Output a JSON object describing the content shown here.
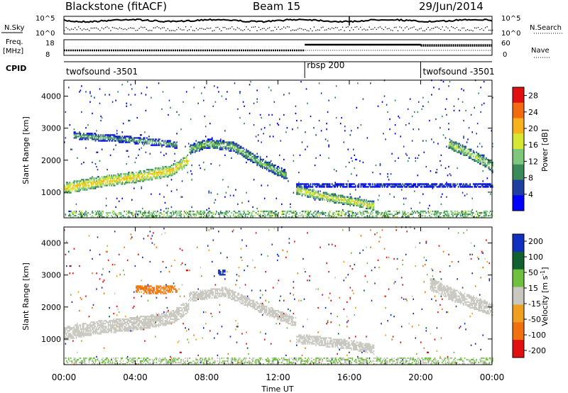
{
  "header": {
    "title": "Blackstone (fitACF)",
    "beam": "Beam 15",
    "date": "29/Jun/2014"
  },
  "summary_panels": {
    "nsky_label": "N.Sky",
    "nsearch_label": "N.Search",
    "nsky_ticks": [
      "10^5",
      "10^0"
    ],
    "freq_label_line1": "Freq.",
    "freq_label_line2": "[MHz]",
    "freq_ticks": [
      "18",
      "8"
    ],
    "nave_label": "Nave",
    "nave_ticks": [
      "60",
      "0"
    ],
    "cpid_label": "CPID"
  },
  "cpid_segments": [
    {
      "label": "twofsound -3501",
      "start_hour": 0,
      "end_hour": 13.5
    },
    {
      "label": "rbsp 200",
      "start_hour": 13.5,
      "end_hour": 20
    },
    {
      "label": "twofsound -3501",
      "start_hour": 20,
      "end_hour": 24
    }
  ],
  "x_axis": {
    "label": "Time UT",
    "ticks": [
      "00:00",
      "04:00",
      "08:00",
      "12:00",
      "16:00",
      "20:00",
      "00:00"
    ],
    "range_hours": [
      0,
      24
    ]
  },
  "chart_data": [
    {
      "type": "heatmap",
      "name": "power",
      "ylabel": "Slant Range [km]",
      "y_ticks": [
        1000,
        2000,
        3000,
        4000
      ],
      "ylim": [
        200,
        4500
      ],
      "x_unit": "hour UT",
      "colorbar": {
        "label": "Power [dB]",
        "ticks": [
          4,
          8,
          12,
          16,
          20,
          24,
          28
        ],
        "range": [
          0,
          30
        ],
        "colors": [
          "#0000ff",
          "#1f3f9f",
          "#3a8a5a",
          "#7ec87e",
          "#d7e832",
          "#f7b31e",
          "#f36a10",
          "#e01010"
        ]
      },
      "echo_bands": [
        {
          "x": [
            0,
            2,
            4,
            6,
            7
          ],
          "y": [
            1100,
            1300,
            1450,
            1650,
            2000
          ],
          "width_km": 350,
          "level_db": 20
        },
        {
          "x": [
            7,
            8,
            9.5,
            11,
            12.5
          ],
          "y": [
            2300,
            2500,
            2400,
            1900,
            1500
          ],
          "width_km": 300,
          "level_db": 14
        },
        {
          "x": [
            0.5,
            3,
            5,
            6.3
          ],
          "y": [
            2750,
            2650,
            2550,
            2450
          ],
          "width_km": 220,
          "level_db": 12
        },
        {
          "x": [
            13,
            14.5,
            16,
            17.4
          ],
          "y": [
            1050,
            850,
            700,
            550
          ],
          "width_km": 280,
          "level_db": 18
        },
        {
          "x": [
            13,
            16,
            20,
            24
          ],
          "y": [
            1200,
            1200,
            1200,
            1200
          ],
          "width_km": 120,
          "level_db": 8
        },
        {
          "x": [
            21.5,
            22.5,
            23.5,
            24
          ],
          "y": [
            2500,
            2250,
            1950,
            1750
          ],
          "width_km": 320,
          "level_db": 16
        }
      ]
    },
    {
      "type": "heatmap",
      "name": "velocity",
      "ylabel": "Slant Range [km]",
      "y_ticks": [
        1000,
        2000,
        3000,
        4000
      ],
      "ylim": [
        200,
        4500
      ],
      "x_unit": "hour UT",
      "colorbar": {
        "label": "Velocity [m s^-1]",
        "ticks": [
          200,
          100,
          50,
          15,
          -15,
          -50,
          -100,
          -200
        ],
        "colors": [
          "#1030c0",
          "#106030",
          "#70c040",
          "#c8c8c0",
          "#f0a020",
          "#f07010",
          "#e01010"
        ]
      },
      "echo_bands": [
        {
          "x": [
            0,
            2,
            4,
            6,
            7
          ],
          "y": [
            1150,
            1350,
            1450,
            1650,
            2000
          ],
          "width_km": 420,
          "velocity": 0
        },
        {
          "x": [
            7,
            9,
            11,
            13
          ],
          "y": [
            2300,
            2450,
            1950,
            1500
          ],
          "width_km": 300,
          "velocity": 0
        },
        {
          "x": [
            4,
            5,
            6.3
          ],
          "y": [
            2550,
            2500,
            2550
          ],
          "width_km": 250,
          "velocity": -60
        },
        {
          "x": [
            8.6,
            9
          ],
          "y": [
            3050,
            3050
          ],
          "width_km": 200,
          "velocity": 150
        },
        {
          "x": [
            13,
            16,
            17.4
          ],
          "y": [
            1000,
            800,
            650
          ],
          "width_km": 300,
          "velocity": 0
        },
        {
          "x": [
            20.5,
            22,
            24
          ],
          "y": [
            2700,
            2300,
            1900
          ],
          "width_km": 400,
          "velocity": 0
        }
      ]
    }
  ]
}
